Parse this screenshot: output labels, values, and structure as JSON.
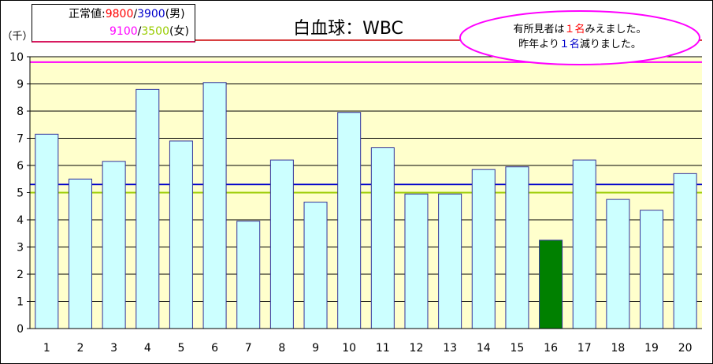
{
  "chart_data": {
    "type": "bar",
    "title": "白血球：WBC",
    "y_unit": "（千）",
    "ylim": [
      0,
      10
    ],
    "yticks": [
      0,
      1,
      2,
      3,
      4,
      5,
      6,
      7,
      8,
      9,
      10
    ],
    "categories": [
      "1",
      "2",
      "3",
      "4",
      "5",
      "6",
      "7",
      "8",
      "9",
      "10",
      "11",
      "12",
      "13",
      "14",
      "15",
      "16",
      "17",
      "18",
      "19",
      "20"
    ],
    "values": [
      7.15,
      5.5,
      6.15,
      8.8,
      6.9,
      9.05,
      3.95,
      6.2,
      4.65,
      7.95,
      6.65,
      4.95,
      4.95,
      5.85,
      5.95,
      3.25,
      6.2,
      4.75,
      4.35,
      5.7
    ],
    "highlight_index": 15,
    "reference_lines": [
      {
        "value": 9.8,
        "color": "#ff00ff"
      },
      {
        "value": 5.3,
        "color": "#0000cc"
      },
      {
        "value": 5.0,
        "color": "#99cc00"
      }
    ],
    "colors": {
      "bar_fill": "#ccffff",
      "bar_stroke": "#333399",
      "highlight_fill": "#008000",
      "plot_bg": "#ffffcc",
      "grid": "#000000"
    }
  },
  "legend": {
    "label": "正常値:",
    "male_high": "9800",
    "sep1": "/",
    "male_low": "3900",
    "male_tag": "(男)",
    "female_high": "9100",
    "sep2": "/",
    "female_low": "3500",
    "female_tag": "(女)",
    "colors": {
      "male_high": "#ff0000",
      "male_low": "#0000cc",
      "female_high": "#ff00ff",
      "female_low": "#99cc00"
    }
  },
  "note": {
    "line1_pre": "有所見者は",
    "line1_num": "１名",
    "line1_post": "みえました。",
    "line2_pre": "昨年より",
    "line2_num": "１名",
    "line2_post": "減りました。",
    "num1_color": "#ff0000",
    "num2_color": "#0000cc",
    "ellipse_stroke": "#ff00ff"
  }
}
